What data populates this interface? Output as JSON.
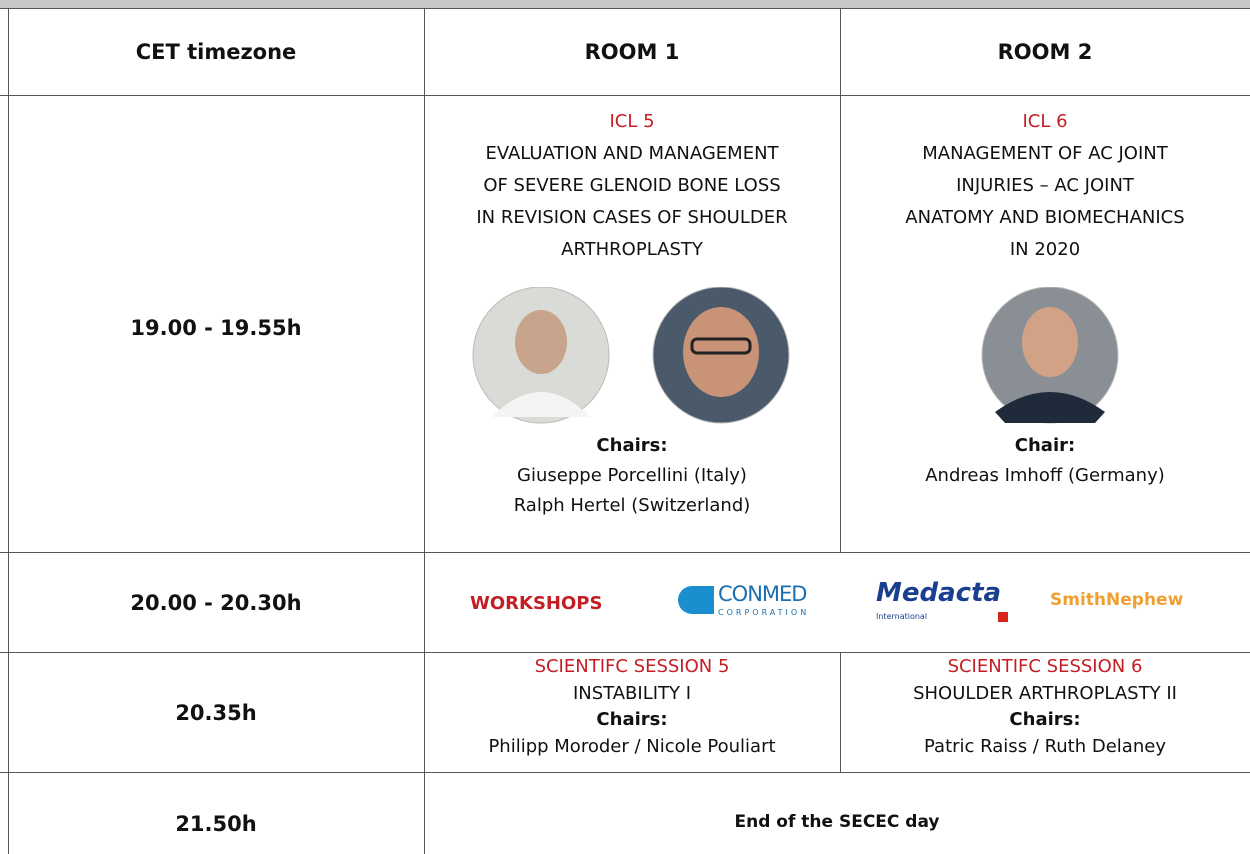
{
  "header": {
    "time": "CET timezone",
    "room1": "ROOM 1",
    "room2": "ROOM 2"
  },
  "rows": [
    {
      "time": "19.00 - 19.55h",
      "room1": {
        "code": "ICL 5",
        "title": [
          "EVALUATION AND MANAGEMENT",
          "OF SEVERE GLENOID BONE LOSS",
          "IN REVISION CASES OF SHOULDER",
          "ARTHROPLASTY"
        ],
        "chairs_label": "Chairs:",
        "chairs": [
          "Giuseppe Porcellini (Italy)",
          "Ralph Hertel (Switzerland)"
        ]
      },
      "room2": {
        "code": "ICL 6",
        "title": [
          "MANAGEMENT OF AC JOINT",
          "INJURIES – AC JOINT",
          "ANATOMY AND BIOMECHANICS",
          "IN 2020"
        ],
        "chairs_label": "Chair:",
        "chairs": [
          "Andreas Imhoff (Germany)"
        ]
      }
    },
    {
      "time": "20.00 - 20.30h",
      "label": "WORKSHOPS",
      "sponsors": [
        {
          "name": "CONMED",
          "sub": "CORPORATION"
        },
        {
          "name": "Medacta",
          "sub": "International"
        },
        {
          "name": "SmithNephew"
        }
      ]
    },
    {
      "time": "20.35h",
      "room1": {
        "code": "SCIENTIFC SESSION 5",
        "title": "INSTABILITY I",
        "chairs_label": "Chairs:",
        "chairs": "Philipp Moroder / Nicole Pouliart"
      },
      "room2": {
        "code": "SCIENTIFC SESSION 6",
        "title": "SHOULDER ARTHROPLASTY II",
        "chairs_label": "Chairs:",
        "chairs": "Patric Raiss / Ruth Delaney"
      }
    },
    {
      "time": "21.50h",
      "note": "End of the SECEC day"
    }
  ]
}
